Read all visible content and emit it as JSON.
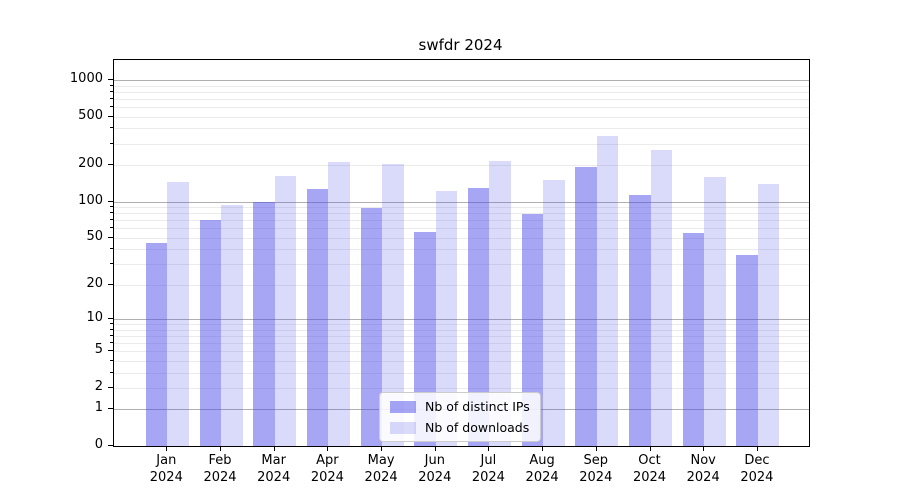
{
  "title": "swfdr 2024",
  "colors": {
    "bar_distinct_ips": "rgba(70,70,235,0.48)",
    "bar_downloads": "rgba(70,70,235,0.20)",
    "major_gridline": "#b0b0b0",
    "minor_gridline": "#ebebeb",
    "axis": "#000000"
  },
  "chart_data": {
    "type": "bar",
    "title": "swfdr 2024",
    "xlabel": "",
    "ylabel": "",
    "x_tick_months": [
      "Jan",
      "Feb",
      "Mar",
      "Apr",
      "May",
      "Jun",
      "Jul",
      "Aug",
      "Sep",
      "Oct",
      "Nov",
      "Dec"
    ],
    "x_tick_year": "2024",
    "series": [
      {
        "name": "Nb of distinct IPs",
        "values": [
          45,
          70,
          100,
          126,
          88,
          56,
          130,
          79,
          193,
          114,
          55,
          36
        ]
      },
      {
        "name": "Nb of downloads",
        "values": [
          144,
          94,
          163,
          210,
          203,
          122,
          214,
          150,
          350,
          268,
          159,
          140
        ]
      }
    ],
    "y_axis": {
      "scale": "log10(1+y)",
      "tick_labels": [
        "1000",
        "500",
        "200",
        "100",
        "50",
        "20",
        "10",
        "5",
        "2",
        "1",
        "0"
      ],
      "tick_values": [
        1000,
        500,
        200,
        100,
        50,
        20,
        10,
        5,
        2,
        1,
        0
      ],
      "major_gridline_values": [
        1,
        10,
        100,
        1000
      ],
      "ylim_top": 1460
    },
    "grid": "major+minor horizontal",
    "legend_position": "lower center"
  }
}
